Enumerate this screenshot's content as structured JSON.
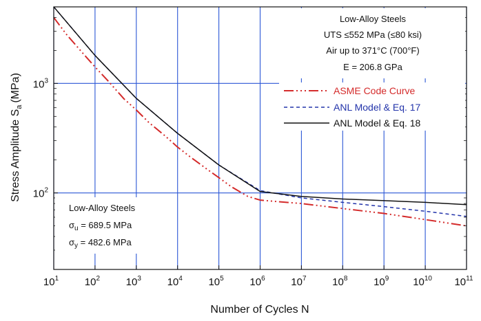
{
  "chart_data": {
    "type": "line",
    "xlabel": "Number of Cycles N",
    "ylabel_main": "Stress Amplitude S",
    "ylabel_sub": "a",
    "ylabel_unit": "(MPa)",
    "x_scale": "log",
    "y_scale": "log",
    "xlim": [
      10,
      100000000000
    ],
    "ylim": [
      20,
      5000
    ],
    "grid": true,
    "grid_color": "#2a56d6",
    "x_ticks": [
      {
        "value": 10,
        "base": "10",
        "exp": "1"
      },
      {
        "value": 100,
        "base": "10",
        "exp": "2"
      },
      {
        "value": 1000,
        "base": "10",
        "exp": "3"
      },
      {
        "value": 10000,
        "base": "10",
        "exp": "4"
      },
      {
        "value": 100000,
        "base": "10",
        "exp": "5"
      },
      {
        "value": 1000000,
        "base": "10",
        "exp": "6"
      },
      {
        "value": 10000000,
        "base": "10",
        "exp": "7"
      },
      {
        "value": 100000000,
        "base": "10",
        "exp": "8"
      },
      {
        "value": 1000000000,
        "base": "10",
        "exp": "9"
      },
      {
        "value": 10000000000,
        "base": "10",
        "exp": "10"
      },
      {
        "value": 100000000000,
        "base": "10",
        "exp": "11"
      }
    ],
    "y_ticks": [
      {
        "value": 100,
        "base": "10",
        "exp": "2"
      },
      {
        "value": 1000,
        "base": "10",
        "exp": "3"
      }
    ],
    "legend_position": "right",
    "series": [
      {
        "name": "ASME Code Curve",
        "color": "#d42a2a",
        "dash": "14,4,2,4,2,4,2,4",
        "x": [
          10,
          20,
          50,
          100,
          200,
          500,
          1000,
          2000,
          5000,
          10000,
          20000,
          50000,
          100000,
          200000,
          500000,
          1000000,
          2000000,
          10000000,
          100000000,
          1000000000,
          10000000000,
          100000000000
        ],
        "y": [
          3999,
          2827,
          1896,
          1413,
          1069,
          724,
          572,
          441,
          331,
          262,
          214,
          166,
          138,
          114,
          93,
          86,
          84,
          80,
          72,
          65,
          57,
          50
        ]
      },
      {
        "name": "ANL Model & Eq. 17",
        "color": "#2233aa",
        "dash": "5,4",
        "x": [
          10,
          100,
          1000,
          10000,
          100000,
          1000000,
          10000000,
          100000000,
          1000000000,
          10000000000,
          100000000000
        ],
        "y": [
          5000,
          1800,
          730,
          350,
          180,
          105,
          90,
          82,
          75,
          68,
          61
        ]
      },
      {
        "name": "ANL Model & Eq. 18",
        "color": "#111111",
        "dash": "",
        "x": [
          10,
          100,
          1000,
          10000,
          100000,
          1000000,
          10000000,
          100000000,
          1000000000,
          10000000000,
          100000000000
        ],
        "y": [
          5000,
          1800,
          730,
          350,
          180,
          103,
          93,
          88,
          85,
          82,
          78
        ]
      }
    ]
  },
  "annotations": {
    "top_box": {
      "line1": "Low-Alloy Steels",
      "line2": "UTS ≤552 MPa (≤80 ksi)",
      "line3": "Air up to 371°C (700°F)",
      "line4": "E = 206.8 GPa"
    },
    "bottom_box": {
      "title": "Low-Alloy Steels",
      "su_sym": "σ",
      "su_sub": "u",
      "su_val": " = 689.5 MPa",
      "sy_sym": "σ",
      "sy_sub": "y",
      "sy_val": " = 482.6 MPa"
    }
  }
}
